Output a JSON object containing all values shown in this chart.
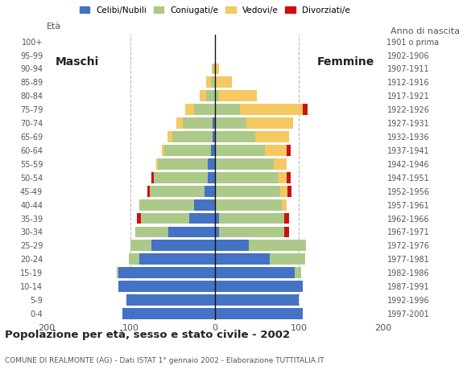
{
  "age_groups": [
    "0-4",
    "5-9",
    "10-14",
    "15-19",
    "20-24",
    "25-29",
    "30-34",
    "35-39",
    "40-44",
    "45-49",
    "50-54",
    "55-59",
    "60-64",
    "65-69",
    "70-74",
    "75-79",
    "80-84",
    "85-89",
    "90-94",
    "95-99",
    "100+"
  ],
  "birth_years": [
    "1997-2001",
    "1992-1996",
    "1987-1991",
    "1982-1986",
    "1977-1981",
    "1972-1976",
    "1967-1971",
    "1962-1966",
    "1957-1961",
    "1952-1956",
    "1947-1951",
    "1942-1946",
    "1937-1941",
    "1932-1936",
    "1927-1931",
    "1922-1926",
    "1917-1921",
    "1912-1916",
    "1907-1911",
    "1902-1906",
    "1901 o prima"
  ],
  "males": {
    "celibe": [
      110,
      105,
      115,
      115,
      90,
      75,
      55,
      30,
      25,
      12,
      8,
      8,
      5,
      3,
      3,
      0,
      0,
      0,
      0,
      0,
      0
    ],
    "coniugato": [
      0,
      0,
      0,
      2,
      12,
      25,
      40,
      58,
      65,
      65,
      65,
      60,
      55,
      48,
      35,
      25,
      10,
      5,
      2,
      0,
      0
    ],
    "vedovo": [
      0,
      0,
      0,
      0,
      0,
      0,
      0,
      0,
      0,
      0,
      0,
      2,
      3,
      5,
      8,
      10,
      8,
      5,
      2,
      0,
      0
    ],
    "divorziato": [
      0,
      0,
      0,
      0,
      0,
      0,
      0,
      5,
      0,
      3,
      2,
      0,
      0,
      0,
      0,
      0,
      0,
      0,
      0,
      0,
      0
    ]
  },
  "females": {
    "celibe": [
      105,
      100,
      105,
      95,
      65,
      40,
      5,
      5,
      0,
      0,
      0,
      0,
      0,
      0,
      0,
      0,
      0,
      0,
      0,
      0,
      0
    ],
    "coniugato": [
      0,
      0,
      0,
      8,
      42,
      68,
      78,
      78,
      80,
      78,
      75,
      70,
      60,
      48,
      38,
      30,
      5,
      0,
      0,
      0,
      0
    ],
    "vedovo": [
      0,
      0,
      0,
      0,
      0,
      0,
      0,
      0,
      5,
      8,
      10,
      15,
      25,
      40,
      55,
      75,
      45,
      20,
      5,
      0,
      0
    ],
    "divorziato": [
      0,
      0,
      0,
      0,
      0,
      0,
      5,
      5,
      0,
      5,
      5,
      0,
      5,
      0,
      0,
      5,
      0,
      0,
      0,
      0,
      0
    ]
  },
  "colors": {
    "celibe": "#4472c4",
    "coniugato": "#adc98a",
    "vedovo": "#f5c862",
    "divorziato": "#cc1111"
  },
  "legend_labels": [
    "Celibi/Nubili",
    "Coniugati/e",
    "Vedovi/e",
    "Divorziati/e"
  ],
  "title": "Popolazione per età, sesso e stato civile - 2002",
  "subtitle": "COMUNE DI REALMONTE (AG) - Dati ISTAT 1° gennaio 2002 - Elaborazione TUTTITALIA.IT",
  "label_maschi": "Maschi",
  "label_femmine": "Femmine",
  "ylabel_left": "Età",
  "ylabel_right": "Anno di nascita",
  "xlim": 200,
  "bg_color": "#ffffff",
  "grid_color": "#bbbbbb"
}
